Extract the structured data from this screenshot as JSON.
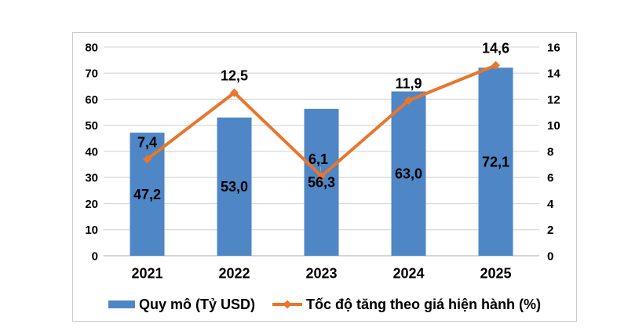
{
  "chart_data": {
    "type": "combo-bar-line",
    "categories": [
      "2021",
      "2022",
      "2023",
      "2024",
      "2025"
    ],
    "series": [
      {
        "name": "Quy mô (Tỷ USD)",
        "type": "bar",
        "axis": "left",
        "values": [
          47.2,
          53.0,
          56.3,
          63.0,
          72.1
        ],
        "labels": [
          "47,2",
          "53,0",
          "56,3",
          "63,0",
          "72,1"
        ]
      },
      {
        "name": "Tốc độ tăng theo giá hiện hành (%)",
        "type": "line",
        "axis": "right",
        "values": [
          7.4,
          12.5,
          6.1,
          11.9,
          14.6
        ],
        "labels": [
          "7,4",
          "12,5",
          "6,1",
          "11,9",
          "14,6"
        ]
      }
    ],
    "left_axis": {
      "min": 0,
      "max": 80,
      "step": 10,
      "ticks": [
        "0",
        "10",
        "20",
        "30",
        "40",
        "50",
        "60",
        "70",
        "80"
      ]
    },
    "right_axis": {
      "min": 0,
      "max": 16,
      "step": 2,
      "ticks": [
        "0",
        "2",
        "4",
        "6",
        "8",
        "10",
        "12",
        "14",
        "16"
      ]
    },
    "grid": true,
    "legend_position": "bottom",
    "label_decimal_separator": ",",
    "leader_line_category": "2023"
  },
  "colors": {
    "bar": "#4E86C6",
    "line": "#E8762D",
    "gridline": "#D9D9D9",
    "axis_line": "#BDBDBD",
    "text": "#000000",
    "card_border": "#CBCBCB",
    "leader": "#A6A6A6",
    "background": "#FFFFFF"
  }
}
